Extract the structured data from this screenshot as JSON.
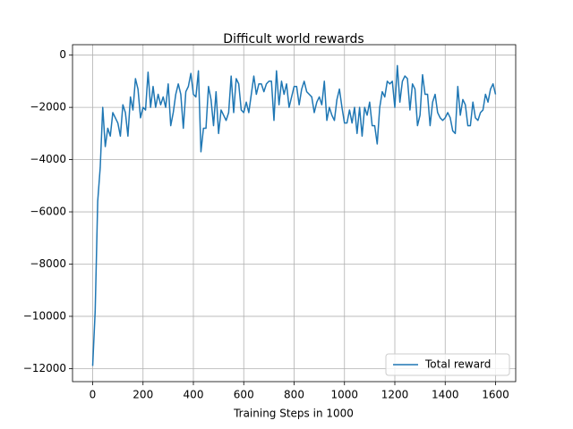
{
  "chart_data": {
    "type": "line",
    "title": "Difficult world rewards",
    "x_label": "Training Steps in 1000",
    "x": [
      0,
      10,
      20,
      30,
      40,
      50,
      60,
      70,
      80,
      90,
      100,
      110,
      120,
      130,
      140,
      150,
      160,
      170,
      180,
      190,
      200,
      210,
      220,
      230,
      240,
      250,
      260,
      270,
      280,
      290,
      300,
      310,
      320,
      330,
      340,
      350,
      360,
      370,
      380,
      390,
      400,
      410,
      420,
      430,
      440,
      450,
      460,
      470,
      480,
      490,
      500,
      510,
      520,
      530,
      540,
      550,
      560,
      570,
      580,
      590,
      600,
      610,
      620,
      630,
      640,
      650,
      660,
      670,
      680,
      690,
      700,
      710,
      720,
      730,
      740,
      750,
      760,
      770,
      780,
      790,
      800,
      810,
      820,
      830,
      840,
      850,
      860,
      870,
      880,
      890,
      900,
      910,
      920,
      930,
      940,
      950,
      960,
      970,
      980,
      990,
      1000,
      1010,
      1020,
      1030,
      1040,
      1050,
      1060,
      1070,
      1080,
      1090,
      1100,
      1110,
      1120,
      1130,
      1140,
      1150,
      1160,
      1170,
      1180,
      1190,
      1200,
      1210,
      1220,
      1230,
      1240,
      1250,
      1260,
      1270,
      1280,
      1290,
      1300,
      1310,
      1320,
      1330,
      1340,
      1350,
      1360,
      1370,
      1380,
      1390,
      1400,
      1410,
      1420,
      1430,
      1440,
      1450,
      1460,
      1470,
      1480,
      1490,
      1500,
      1510,
      1520,
      1530,
      1540,
      1550,
      1560,
      1570,
      1580,
      1590,
      1600
    ],
    "series": [
      {
        "name": "Total reward",
        "color": "#1f77b4",
        "values": [
          -11900,
          -9800,
          -5600,
          -4300,
          -2000,
          -3500,
          -2800,
          -3100,
          -2200,
          -2400,
          -2600,
          -3100,
          -1900,
          -2200,
          -3100,
          -1600,
          -2100,
          -900,
          -1300,
          -2400,
          -2000,
          -2100,
          -650,
          -2000,
          -1200,
          -2000,
          -1500,
          -1900,
          -1600,
          -2000,
          -1100,
          -2700,
          -2200,
          -1500,
          -1100,
          -1500,
          -2800,
          -1400,
          -1200,
          -700,
          -1500,
          -1600,
          -600,
          -3700,
          -2800,
          -2800,
          -1200,
          -1700,
          -2700,
          -1400,
          -3000,
          -2100,
          -2300,
          -2500,
          -2200,
          -800,
          -2200,
          -900,
          -1100,
          -2100,
          -2200,
          -1800,
          -2200,
          -1500,
          -800,
          -1500,
          -1100,
          -1100,
          -1400,
          -1100,
          -1000,
          -1000,
          -2500,
          -600,
          -1900,
          -1000,
          -1500,
          -1100,
          -2000,
          -1600,
          -1200,
          -1200,
          -1900,
          -1300,
          -1000,
          -1400,
          -1500,
          -1600,
          -2200,
          -1800,
          -1600,
          -1900,
          -1000,
          -2500,
          -2000,
          -2300,
          -2500,
          -1700,
          -1300,
          -2000,
          -2600,
          -2600,
          -2100,
          -2600,
          -2000,
          -3000,
          -2000,
          -3100,
          -2000,
          -2300,
          -1800,
          -2700,
          -2700,
          -3400,
          -2000,
          -1400,
          -1600,
          -1000,
          -1100,
          -1000,
          -2000,
          -400,
          -1800,
          -1000,
          -800,
          -900,
          -2100,
          -1100,
          -1300,
          -2700,
          -2300,
          -750,
          -1500,
          -1500,
          -2700,
          -1800,
          -1500,
          -2200,
          -2400,
          -2500,
          -2400,
          -2200,
          -2400,
          -2900,
          -3000,
          -1200,
          -2300,
          -1700,
          -1900,
          -2700,
          -2700,
          -1800,
          -2400,
          -2500,
          -2200,
          -2100,
          -1500,
          -1800,
          -1300,
          -1100,
          -1500
        ]
      }
    ],
    "xlim": [
      -80,
      1680
    ],
    "ylim": [
      -12500,
      400
    ],
    "xticks": [
      0,
      200,
      400,
      600,
      800,
      1000,
      1200,
      1400,
      1600
    ],
    "yticks": [
      {
        "value": -12000,
        "label": "−12000"
      },
      {
        "value": -10000,
        "label": "−10000"
      },
      {
        "value": -8000,
        "label": "−8000"
      },
      {
        "value": -6000,
        "label": "−6000"
      },
      {
        "value": -4000,
        "label": "−4000"
      },
      {
        "value": -2000,
        "label": "−2000"
      },
      0
    ],
    "grid": true,
    "legend": "lower right"
  }
}
